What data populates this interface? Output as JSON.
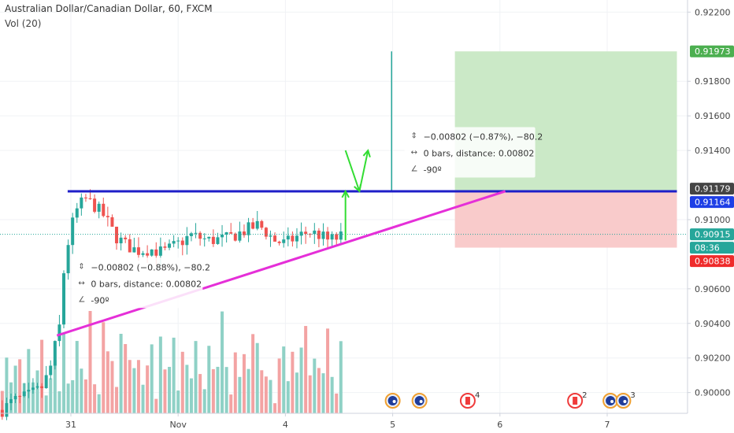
{
  "header": {
    "title": "Australian Dollar/Canadian Dollar, 60, FXCM",
    "volume_label": "Vol (20)"
  },
  "chart_data": {
    "type": "candlestick",
    "symbol": "AUDCAD",
    "interval": "60",
    "ylim": [
      0.8988,
      0.9227
    ],
    "y_ticks": [
      "0.92200",
      "0.91800",
      "0.91600",
      "0.91400",
      "0.91000",
      "0.90600",
      "0.90400",
      "0.90200",
      "0.90000"
    ],
    "x_ticks": [
      {
        "label": "31",
        "day": 0
      },
      {
        "label": "Nov",
        "day": 1
      },
      {
        "label": "4",
        "day": 2
      },
      {
        "label": "5",
        "day": 3
      },
      {
        "label": "6",
        "day": 4
      },
      {
        "label": "7",
        "day": 5
      }
    ],
    "price_labels": [
      {
        "text": "0.91973",
        "price": 0.91973,
        "bg": "#4caf50",
        "fg": "#ffffff"
      },
      {
        "text": "0.91179",
        "price": 0.91179,
        "bg": "#444444",
        "fg": "#ffffff"
      },
      {
        "text": "0.91164",
        "price": 0.91164,
        "bg": "#1e3fe6",
        "fg": "#ffffff"
      },
      {
        "text": "0.90915",
        "price": 0.90915,
        "bg": "#26a69a",
        "fg": "#ffffff"
      },
      {
        "text": "08:36",
        "price": 0.90875,
        "bg": "#26a69a",
        "fg": "#ffffff"
      },
      {
        "text": "0.90838",
        "price": 0.90838,
        "bg": "#ef2b2b",
        "fg": "#ffffff"
      }
    ],
    "horizontal_level": {
      "price": 0.91164,
      "color": "#1e1ec8",
      "from_day": -0.03,
      "to_day": 5.65
    },
    "current_price_line": {
      "price": 0.90915,
      "color": "#26a69a"
    },
    "trendline": {
      "color": "#e52fd8",
      "from": {
        "day": -0.13,
        "price": 0.9033
      },
      "to": {
        "day": 4.05,
        "price": 0.91164
      }
    },
    "position_box": {
      "from_day": 3.58,
      "to_day": 5.65,
      "entry": 0.91164,
      "target": 0.91973,
      "stop": 0.90838,
      "profit_color": "#cbe9c7",
      "loss_color": "#f9cbcb"
    },
    "spike": {
      "day": 2.99,
      "high": 0.91973,
      "low": 0.91164,
      "color": "#26a69a"
    },
    "arrows": [
      {
        "from": {
          "day": 2.56,
          "price": 0.9088
        },
        "to": {
          "day": 2.56,
          "price": 0.91164
        },
        "color": "#33dd33"
      },
      {
        "from": {
          "day": 2.56,
          "price": 0.914
        },
        "to": {
          "day": 2.69,
          "price": 0.91164
        },
        "color": "#33dd33"
      },
      {
        "from": {
          "day": 2.69,
          "price": 0.91164
        },
        "to": {
          "day": 2.77,
          "price": 0.914
        },
        "color": "#33dd33"
      }
    ],
    "measure_boxes": [
      {
        "anchor_day": 0.01,
        "anchor_price": 0.9078,
        "lines": [
          "−0.00802 (−0.88%), −80.2",
          "0 bars, distance: 0.00802",
          "-90º"
        ]
      },
      {
        "anchor_day": 3.11,
        "anchor_price": 0.91535,
        "lines": [
          "−0.00802 (−0.87%), −80.2",
          "0 bars, distance: 0.00802",
          "-90º"
        ]
      }
    ],
    "event_icons": [
      {
        "day": 3.0,
        "flag": "AU",
        "count": ""
      },
      {
        "day": 3.25,
        "flag": "AU",
        "count": ""
      },
      {
        "day": 3.7,
        "flag": "CA",
        "count": "4"
      },
      {
        "day": 4.7,
        "flag": "CA",
        "count": "2"
      },
      {
        "day": 5.03,
        "flag": "AU",
        "count": ""
      },
      {
        "day": 5.15,
        "flag": "AU",
        "count": "3"
      }
    ],
    "anchors": [
      {
        "day": -0.64,
        "price": 0.899
      },
      {
        "day": -0.54,
        "price": 0.8995
      },
      {
        "day": -0.4,
        "price": 0.8998
      },
      {
        "day": -0.28,
        "price": 0.9002
      },
      {
        "day": -0.2,
        "price": 0.9012
      },
      {
        "day": -0.1,
        "price": 0.904
      },
      {
        "day": -0.06,
        "price": 0.9075
      },
      {
        "day": 0.0,
        "price": 0.9095
      },
      {
        "day": 0.06,
        "price": 0.9106
      },
      {
        "day": 0.13,
        "price": 0.9112
      },
      {
        "day": 0.22,
        "price": 0.9108
      },
      {
        "day": 0.31,
        "price": 0.9102
      },
      {
        "day": 0.42,
        "price": 0.909
      },
      {
        "day": 0.52,
        "price": 0.9085
      },
      {
        "day": 0.62,
        "price": 0.9082
      },
      {
        "day": 0.74,
        "price": 0.9083
      },
      {
        "day": 0.86,
        "price": 0.9081
      },
      {
        "day": 1.0,
        "price": 0.9086
      },
      {
        "day": 1.12,
        "price": 0.9091
      },
      {
        "day": 1.28,
        "price": 0.9088
      },
      {
        "day": 1.45,
        "price": 0.9089
      },
      {
        "day": 1.6,
        "price": 0.9093
      },
      {
        "day": 1.75,
        "price": 0.9097
      },
      {
        "day": 1.9,
        "price": 0.9088
      },
      {
        "day": 2.0,
        "price": 0.9086
      },
      {
        "day": 2.1,
        "price": 0.909
      },
      {
        "day": 2.22,
        "price": 0.9093
      },
      {
        "day": 2.32,
        "price": 0.9091
      },
      {
        "day": 2.4,
        "price": 0.9088
      },
      {
        "day": 2.52,
        "price": 0.909
      }
    ],
    "volume_pattern": [
      14,
      28,
      9,
      22,
      35,
      12,
      41,
      18,
      30,
      50,
      8,
      26,
      38,
      15,
      60,
      20,
      11,
      45,
      33,
      19,
      72,
      24,
      13,
      55,
      29,
      40,
      17,
      65,
      36,
      21
    ]
  }
}
